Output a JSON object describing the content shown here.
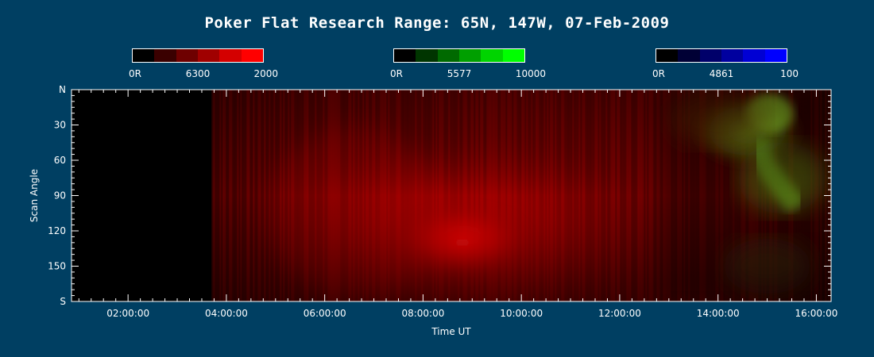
{
  "title": "Poker Flat Research Range: 65N, 147W, 07-Feb-2009",
  "colorbars": [
    {
      "name": "red-6300",
      "label_min": "0R",
      "label_mid": "6300",
      "label_max": "2000",
      "colors": [
        "#000000",
        "#3a0000",
        "#6e0000",
        "#a00000",
        "#d40000",
        "#ff0000"
      ]
    },
    {
      "name": "green-5577",
      "label_min": "0R",
      "label_mid": "5577",
      "label_max": "10000",
      "colors": [
        "#000000",
        "#003500",
        "#006a00",
        "#009f00",
        "#00d400",
        "#00ff00"
      ]
    },
    {
      "name": "blue-4861",
      "label_min": "0R",
      "label_mid": "4861",
      "label_max": "100",
      "colors": [
        "#000000",
        "#000035",
        "#00006a",
        "#00009f",
        "#0000d4",
        "#0000ff"
      ]
    }
  ],
  "chart_data": {
    "type": "heatmap",
    "title": "Poker Flat Research Range: 65N, 147W, 07-Feb-2009",
    "xlabel": "Time UT",
    "ylabel": "Scan Angle",
    "x_ticks": [
      "02:00:00",
      "04:00:00",
      "06:00:00",
      "08:00:00",
      "10:00:00",
      "12:00:00",
      "14:00:00",
      "16:00:00"
    ],
    "x_tick_hours": [
      2,
      4,
      6,
      8,
      10,
      12,
      14,
      16
    ],
    "xlim_hours": [
      0.85,
      16.3
    ],
    "y_ticks": [
      "N",
      "30",
      "60",
      "90",
      "120",
      "150",
      "S"
    ],
    "y_tick_values": [
      0,
      30,
      60,
      90,
      120,
      150,
      180
    ],
    "ylim": [
      0,
      180
    ],
    "no_data_until_hours": 3.7,
    "features": [
      {
        "emission": "6300",
        "color": "#ff0000",
        "peak_time_hours": 8.8,
        "peak_scan_angle": 130,
        "description": "bright red"
      },
      {
        "emission": "5577",
        "color": "#5a8a1e",
        "time_range_hours": [
          13.6,
          15.6
        ],
        "scan_angle_range": [
          0,
          110
        ],
        "description": "green"
      }
    ]
  }
}
